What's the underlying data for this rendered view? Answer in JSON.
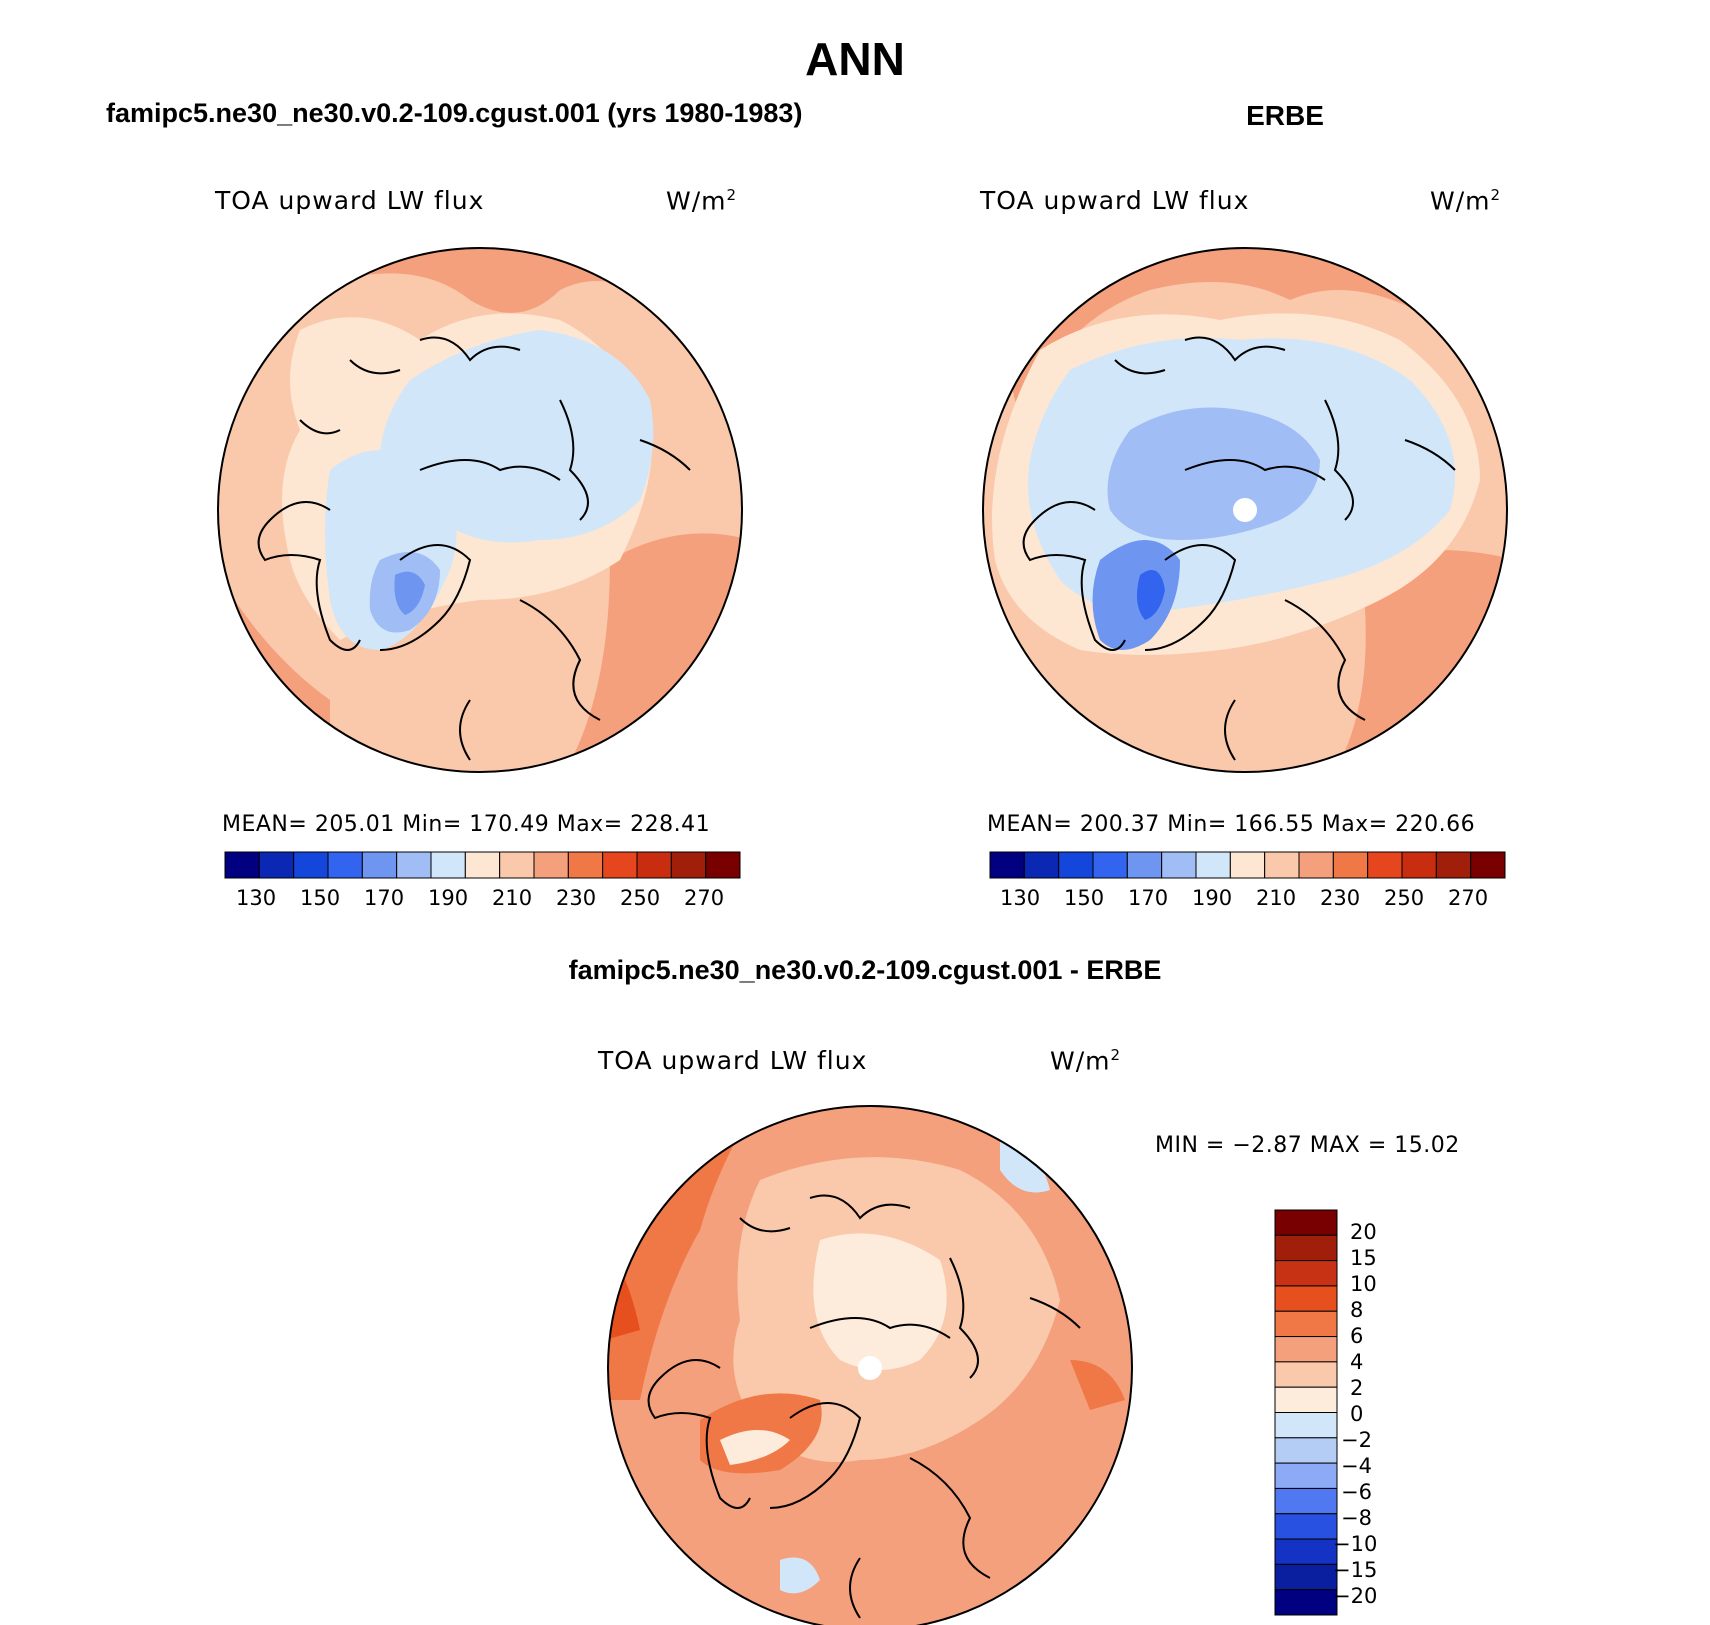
{
  "title": "ANN",
  "panels": [
    {
      "id": "model",
      "title": "famipc5.ne30_ne30.v0.2-109.cgust.001 (yrs 1980-1983)",
      "variable": "TOA upward LW flux",
      "units": "W/m",
      "units_sup": "2",
      "stats_text": "MEAN= 205.01   Min= 170.49   Max= 228.41",
      "has_pole_gap": false,
      "colorbar_labels": [
        "130",
        "150",
        "170",
        "190",
        "210",
        "230",
        "250",
        "270"
      ]
    },
    {
      "id": "obs",
      "title": "ERBE",
      "variable": "TOA upward LW flux",
      "units": "W/m",
      "units_sup": "2",
      "stats_text": "MEAN= 200.37   Min= 166.55   Max= 220.66",
      "has_pole_gap": true,
      "colorbar_labels": [
        "130",
        "150",
        "170",
        "190",
        "210",
        "230",
        "250",
        "270"
      ]
    }
  ],
  "difference": {
    "title": "famipc5.ne30_ne30.v0.2-109.cgust.001 - ERBE",
    "variable": "TOA upward LW flux",
    "units": "W/m",
    "units_sup": "2",
    "minmax_text": "MIN =   −2.87 MAX =   15.02",
    "colorbar_labels": [
      "20",
      "15",
      "10",
      "8",
      "6",
      "4",
      "2",
      "0",
      "−2",
      "−4",
      "−6",
      "−8",
      "−10",
      "−15",
      "−20"
    ]
  },
  "palettes": {
    "absolute": [
      "#000080",
      "#0a28b4",
      "#1446dc",
      "#3264f0",
      "#6e96f0",
      "#a0bef5",
      "#d2e6fa",
      "#fde6d2",
      "#fac8aa",
      "#f5a07d",
      "#f07846",
      "#e6461e",
      "#c82d0f",
      "#a01e0a",
      "#780000"
    ],
    "difference": [
      "#780000",
      "#a01e0a",
      "#c83214",
      "#e6501e",
      "#f07846",
      "#f5a07d",
      "#fac8aa",
      "#fdebdc",
      "#d2e6fa",
      "#b4cdf5",
      "#8caaf5",
      "#5078f0",
      "#2850e1",
      "#1432c3",
      "#0a1ea0",
      "#000080"
    ]
  }
}
